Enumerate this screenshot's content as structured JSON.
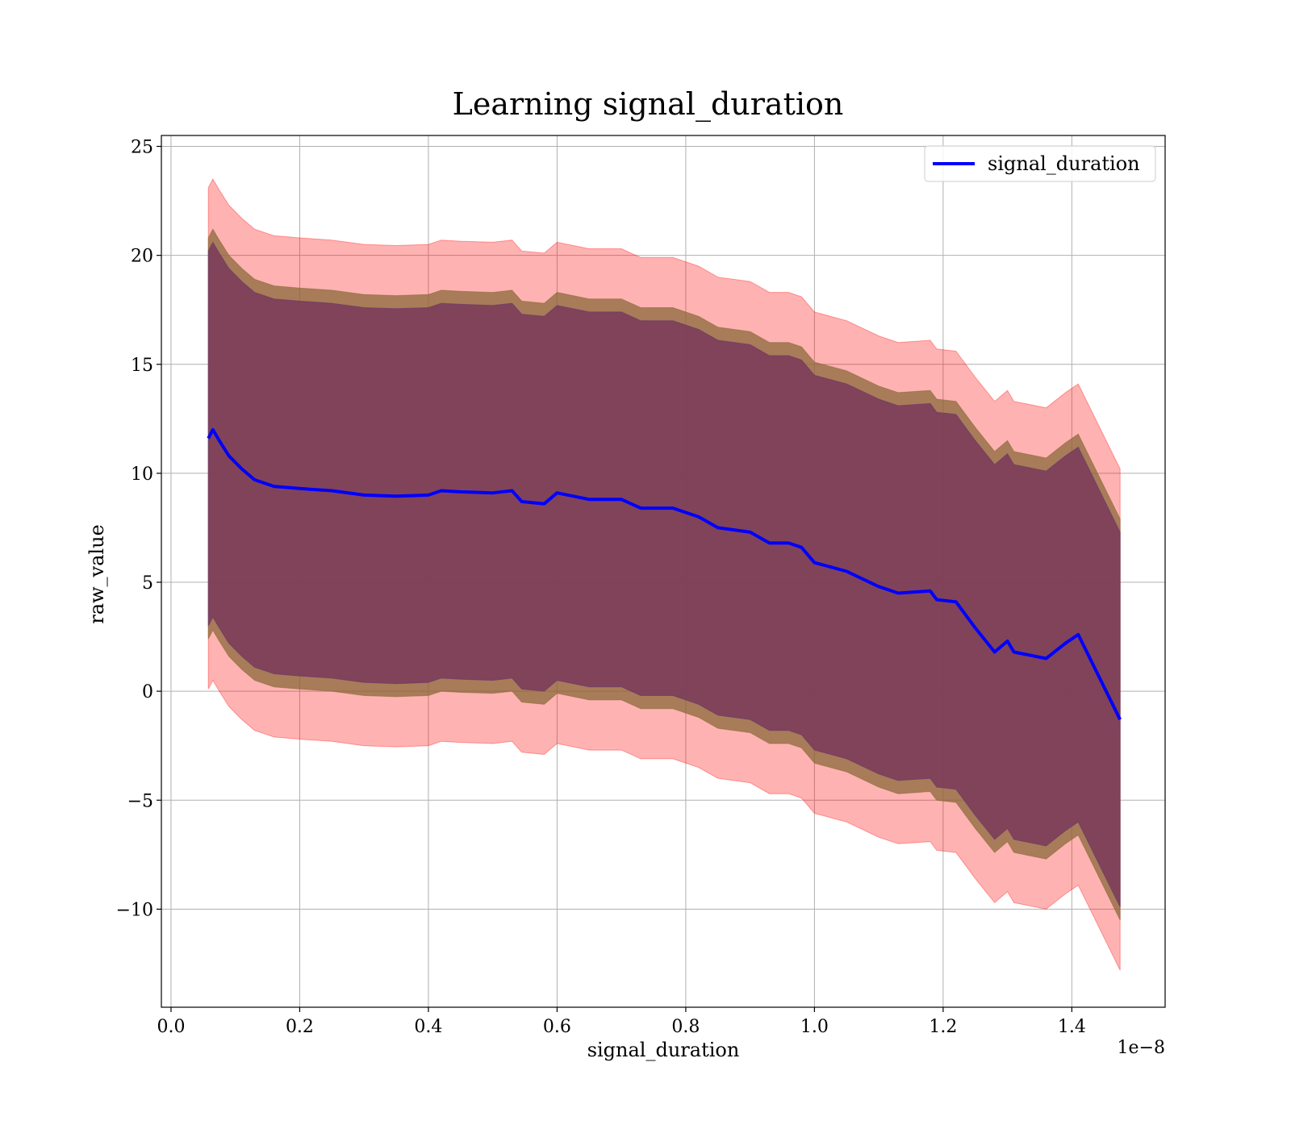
{
  "chart_data": {
    "type": "line",
    "title": "Learning signal_duration",
    "xlabel": "signal_duration",
    "ylabel": "raw_value",
    "x_offset_label": "1e−8",
    "xlim": [
      -0.015,
      1.545
    ],
    "ylim": [
      -14.5,
      25.5
    ],
    "x_ticks": [
      0.0,
      0.2,
      0.4,
      0.6,
      0.8,
      1.0,
      1.2,
      1.4
    ],
    "x_tick_labels": [
      "0.0",
      "0.2",
      "0.4",
      "0.6",
      "0.8",
      "1.0",
      "1.2",
      "1.4"
    ],
    "y_ticks": [
      -10,
      -5,
      0,
      5,
      10,
      15,
      20,
      25
    ],
    "y_tick_labels": [
      "−10",
      "−5",
      "0",
      "5",
      "10",
      "15",
      "20",
      "25"
    ],
    "grid": true,
    "legend_position": "top-right",
    "colors": {
      "line": "#0000ff",
      "outer_band": "#ff0000",
      "middle_band": "#8b6a3a",
      "inner_band": "#7a3a5a",
      "grid": "#b0b0b0"
    },
    "series": [
      {
        "name": "signal_duration",
        "x": [
          0.058,
          0.065,
          0.075,
          0.09,
          0.11,
          0.13,
          0.16,
          0.2,
          0.25,
          0.3,
          0.35,
          0.4,
          0.42,
          0.45,
          0.5,
          0.53,
          0.545,
          0.58,
          0.6,
          0.65,
          0.7,
          0.73,
          0.78,
          0.82,
          0.85,
          0.9,
          0.93,
          0.96,
          0.98,
          1.0,
          1.05,
          1.1,
          1.13,
          1.18,
          1.19,
          1.22,
          1.25,
          1.28,
          1.3,
          1.31,
          1.36,
          1.39,
          1.41,
          1.475
        ],
        "values": [
          11.6,
          12.0,
          11.5,
          10.8,
          10.2,
          9.7,
          9.4,
          9.3,
          9.2,
          9.0,
          8.95,
          9.0,
          9.2,
          9.15,
          9.1,
          9.2,
          8.7,
          8.6,
          9.1,
          8.8,
          8.8,
          8.4,
          8.4,
          8.0,
          7.5,
          7.3,
          6.8,
          6.8,
          6.6,
          5.9,
          5.5,
          4.8,
          4.5,
          4.6,
          4.2,
          4.1,
          2.9,
          1.8,
          2.3,
          1.8,
          1.5,
          2.2,
          2.6,
          -1.3
        ]
      }
    ],
    "bands": [
      {
        "name": "outer",
        "upper_offset": 11.5,
        "lower_offset": -11.5
      },
      {
        "name": "middle",
        "upper_offset": 9.2,
        "lower_offset": -9.2
      },
      {
        "name": "inner",
        "upper_offset": 8.6,
        "lower_offset": -8.6
      }
    ]
  }
}
